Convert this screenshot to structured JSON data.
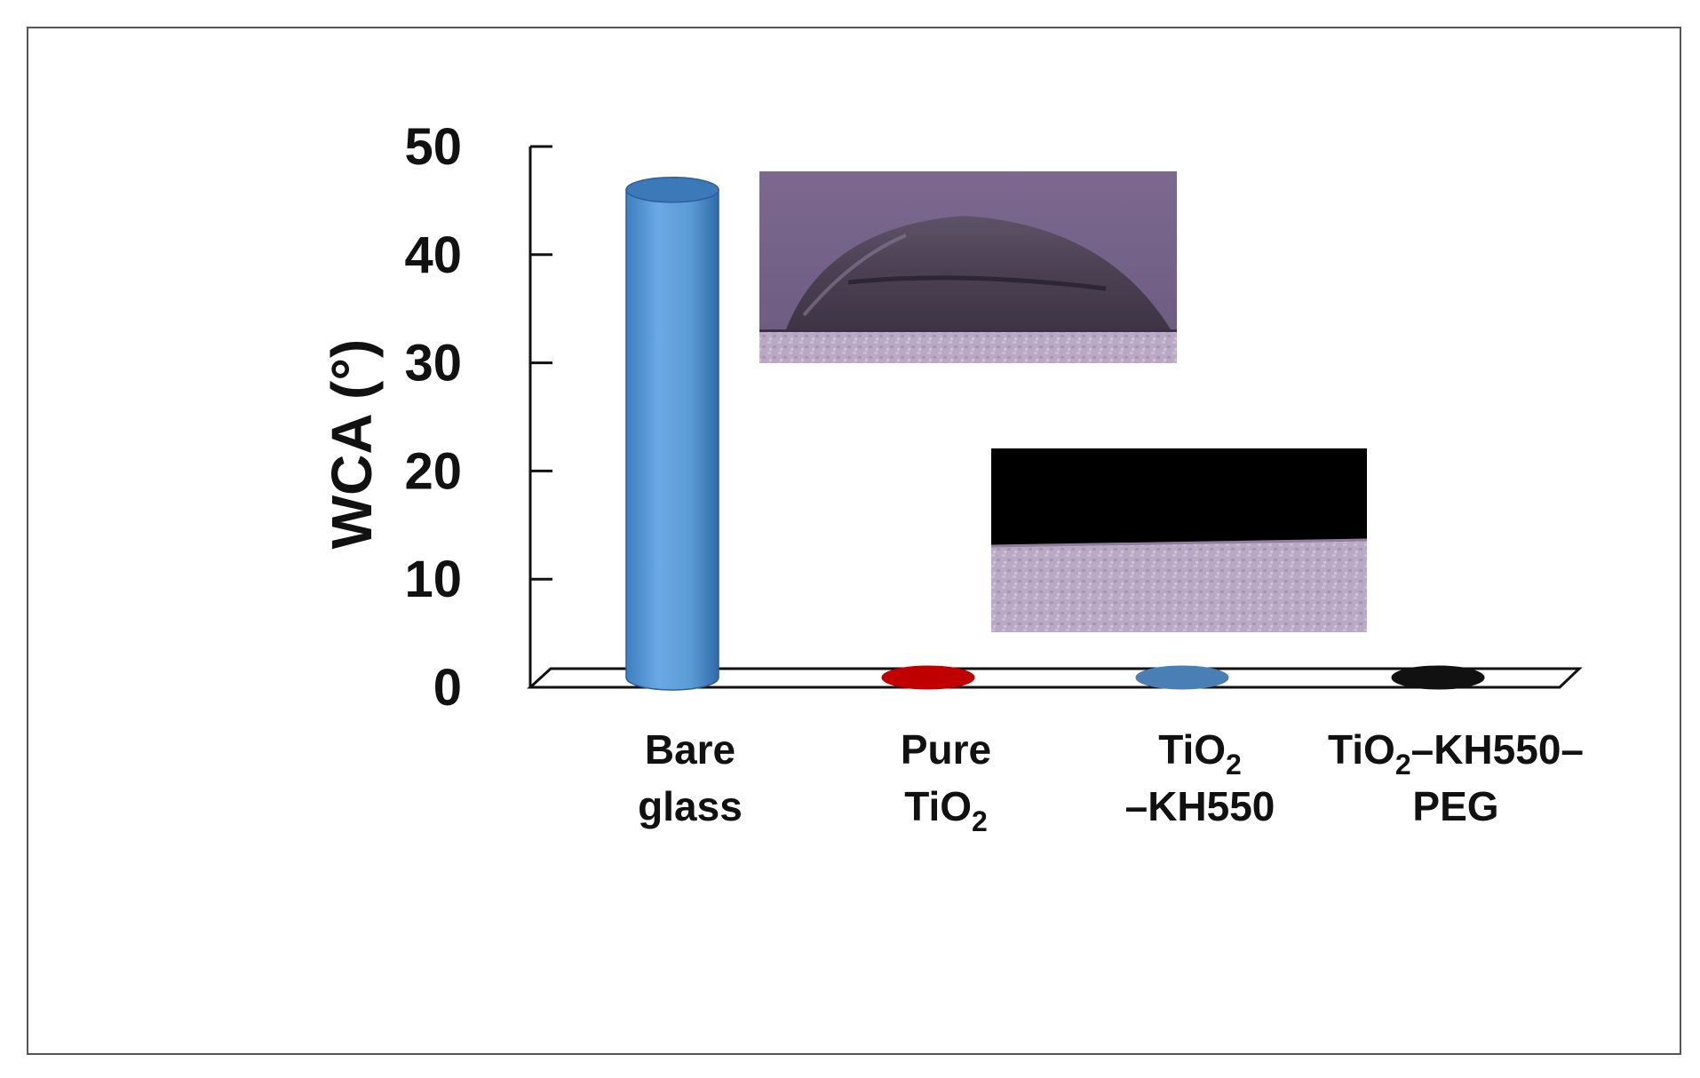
{
  "chart_data": {
    "type": "bar",
    "ylabel": "WCA (°)",
    "ylim": [
      0,
      50
    ],
    "yticks": [
      "0",
      "10",
      "20",
      "30",
      "40",
      "50"
    ],
    "categories": [
      {
        "lines": [
          [
            "Bare"
          ],
          [
            "glass"
          ]
        ]
      },
      {
        "lines": [
          [
            "Pure"
          ],
          [
            "TiO",
            "2",
            ""
          ]
        ]
      },
      {
        "lines": [
          [
            "TiO",
            "2",
            ""
          ],
          [
            "–KH550"
          ]
        ]
      },
      {
        "lines": [
          [
            "TiO",
            "2",
            "–KH550–"
          ],
          [
            "PEG"
          ]
        ]
      }
    ],
    "values": [
      46,
      0,
      0,
      0
    ],
    "colors": [
      "#5b9bd5",
      "#c00000",
      "#4a7fb5",
      "#111111"
    ],
    "grid": false,
    "insets": [
      {
        "name": "droplet-photo-bare-glass",
        "depicts": "water droplet on bare glass"
      },
      {
        "name": "droplet-photo-coated",
        "depicts": "fully spread droplet on coated surface"
      }
    ]
  }
}
